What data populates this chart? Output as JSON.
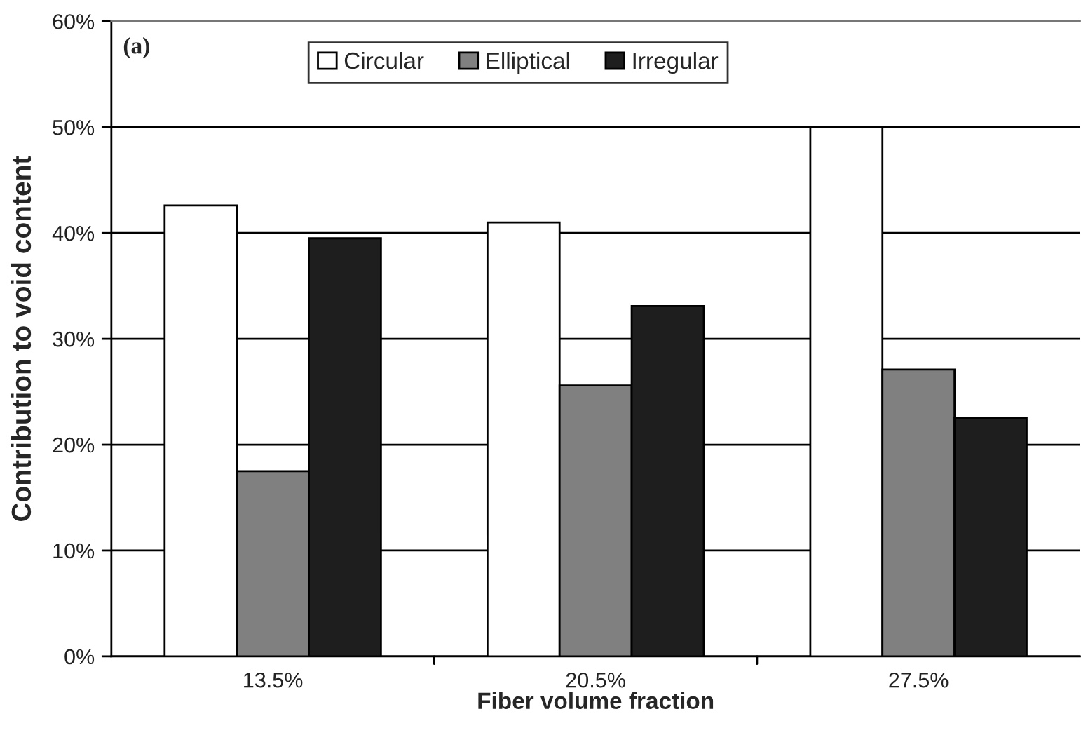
{
  "chart_data": {
    "type": "bar",
    "annotations": [
      "(a)"
    ],
    "xlabel": "Fiber volume fraction",
    "ylabel": "Contribution to void content",
    "categories": [
      "13.5%",
      "20.5%",
      "27.5%"
    ],
    "series": [
      {
        "name": "Circular",
        "color": "#ffffff",
        "values": [
          42.6,
          41.0,
          50.0
        ]
      },
      {
        "name": "Elliptical",
        "color": "#808080",
        "values": [
          17.5,
          25.6,
          27.1
        ]
      },
      {
        "name": "Irregular",
        "color": "#1e1e1e",
        "values": [
          39.5,
          33.1,
          22.5
        ]
      }
    ],
    "ylim": [
      0,
      60
    ],
    "yticks": [
      {
        "value": 0,
        "label": "0%"
      },
      {
        "value": 10,
        "label": "10%"
      },
      {
        "value": 20,
        "label": "20%"
      },
      {
        "value": 30,
        "label": "30%"
      },
      {
        "value": 40,
        "label": "40%"
      },
      {
        "value": 50,
        "label": "50%"
      },
      {
        "value": 60,
        "label": "60%"
      }
    ],
    "grid": "y",
    "legend": "top"
  }
}
